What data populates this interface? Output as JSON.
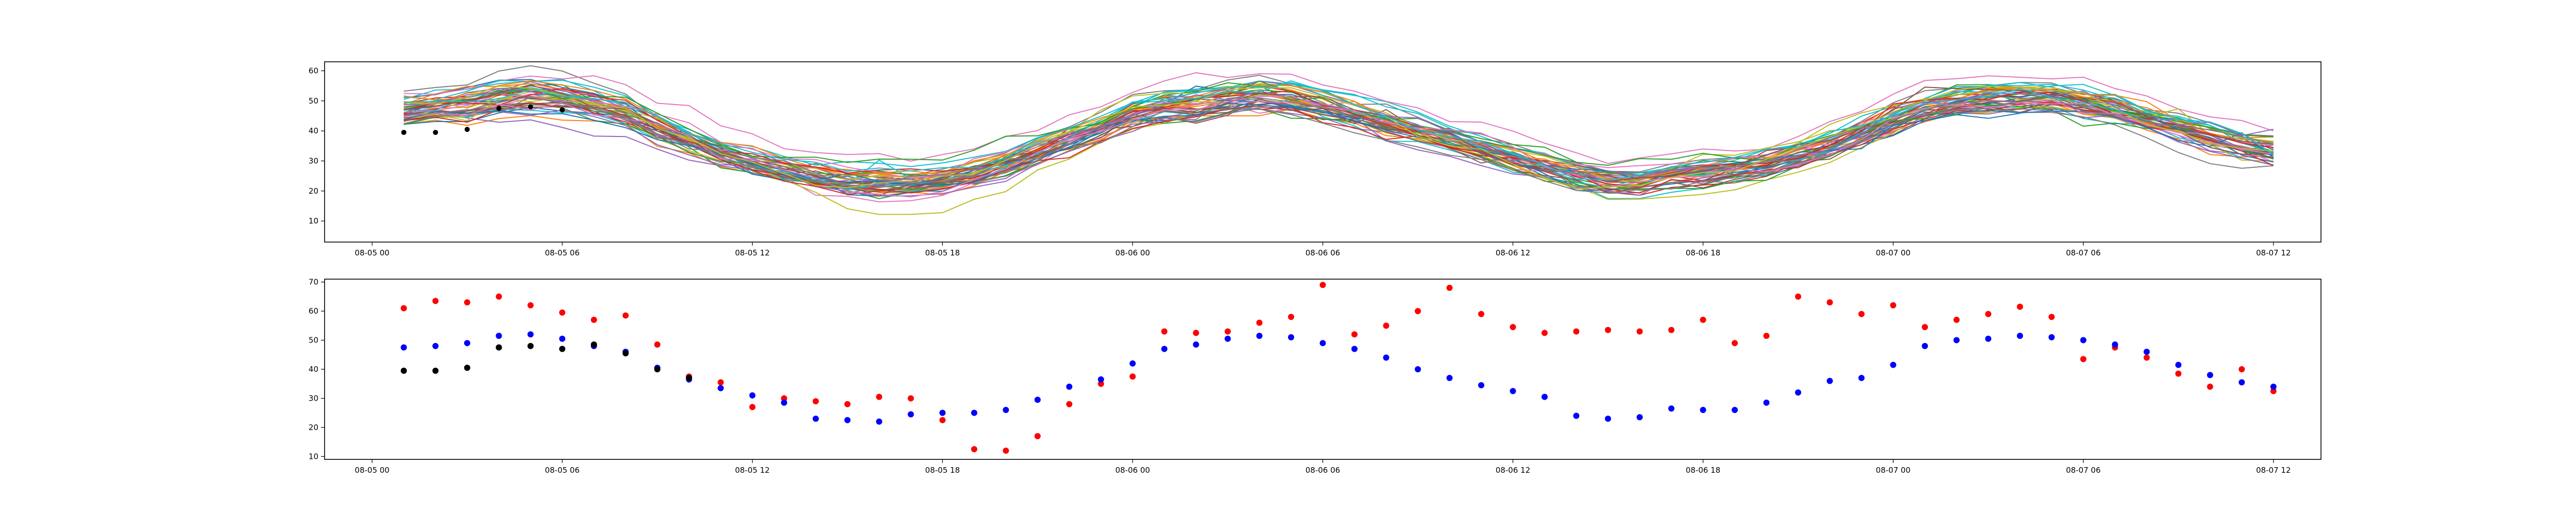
{
  "chart_data": [
    {
      "type": "line",
      "title": "",
      "xlabel": "",
      "ylabel": "",
      "xlim_hours": [
        -1.5,
        61.5
      ],
      "ylim": [
        3,
        63
      ],
      "grid": false,
      "legend": "none",
      "x_tick_labels": [
        "08-05 00",
        "08-05 06",
        "08-05 12",
        "08-05 18",
        "08-06 00",
        "08-06 06",
        "08-06 12",
        "08-06 18",
        "08-07 00",
        "08-07 06",
        "08-07 12"
      ],
      "y_ticks": [
        10,
        20,
        30,
        40,
        50,
        60
      ],
      "ensemble": {
        "member_count": 50,
        "hours": [
          1,
          2,
          3,
          4,
          5,
          6,
          7,
          8,
          9,
          10,
          11,
          12,
          13,
          14,
          15,
          16,
          17,
          18,
          19,
          20,
          21,
          22,
          23,
          24,
          25,
          26,
          27,
          28,
          29,
          30,
          31,
          32,
          33,
          34,
          35,
          36,
          37,
          38,
          39,
          40,
          41,
          42,
          43,
          44,
          45,
          46,
          47,
          48,
          49,
          50,
          51,
          52,
          53,
          54,
          55,
          56,
          57,
          58,
          59,
          60
        ],
        "mean": [
          47,
          48,
          49,
          51,
          52,
          51,
          49,
          46,
          41,
          37,
          33,
          30,
          27,
          25,
          23,
          23,
          23,
          24,
          26,
          29,
          33,
          37,
          41,
          46,
          48,
          49,
          51,
          52,
          51,
          49,
          46,
          43,
          40,
          37,
          34,
          31,
          28,
          25,
          23,
          23,
          25,
          26,
          27,
          29,
          32,
          35,
          39,
          44,
          48,
          50,
          51,
          51,
          51,
          49,
          47,
          44,
          41,
          38,
          35,
          33
        ],
        "colors": [
          "#1f77b4",
          "#ff7f0e",
          "#2ca02c",
          "#d62728",
          "#9467bd",
          "#8c564b",
          "#e377c2",
          "#7f7f7f",
          "#bcbd22",
          "#17becf"
        ]
      },
      "observed": {
        "color": "#000000",
        "points": [
          [
            1,
            39.5
          ],
          [
            2,
            39.5
          ],
          [
            3,
            40.5
          ],
          [
            4,
            47.5
          ],
          [
            5,
            48
          ],
          [
            6,
            47
          ]
        ]
      }
    },
    {
      "type": "scatter",
      "title": "",
      "xlabel": "",
      "ylabel": "",
      "xlim_hours": [
        -1.5,
        61.5
      ],
      "ylim": [
        9,
        71
      ],
      "grid": false,
      "legend": "none",
      "x_tick_labels": [
        "08-05 00",
        "08-05 06",
        "08-05 12",
        "08-05 18",
        "08-06 00",
        "08-06 06",
        "08-06 12",
        "08-06 18",
        "08-07 00",
        "08-07 06",
        "08-07 12"
      ],
      "y_ticks": [
        10,
        20,
        30,
        40,
        50,
        60,
        70
      ],
      "series": [
        {
          "color": "#ff0000",
          "points": [
            [
              1,
              61
            ],
            [
              2,
              63.5
            ],
            [
              3,
              63
            ],
            [
              4,
              65
            ],
            [
              5,
              62
            ],
            [
              6,
              59.5
            ],
            [
              7,
              57
            ],
            [
              8,
              58.5
            ],
            [
              9,
              48.5
            ],
            [
              10,
              37.5
            ],
            [
              11,
              35.5
            ],
            [
              12,
              27
            ],
            [
              13,
              30
            ],
            [
              14,
              29
            ],
            [
              15,
              28
            ],
            [
              16,
              30.5
            ],
            [
              17,
              30
            ],
            [
              18,
              22.5
            ],
            [
              19,
              12.5
            ],
            [
              20,
              12
            ],
            [
              21,
              17
            ],
            [
              22,
              28
            ],
            [
              23,
              35
            ],
            [
              24,
              37.5
            ],
            [
              25,
              53
            ],
            [
              26,
              52.5
            ],
            [
              27,
              53
            ],
            [
              28,
              56
            ],
            [
              29,
              58
            ],
            [
              30,
              69
            ],
            [
              31,
              52
            ],
            [
              32,
              55
            ],
            [
              33,
              60
            ],
            [
              34,
              68
            ],
            [
              35,
              59
            ],
            [
              36,
              54.5
            ],
            [
              37,
              52.5
            ],
            [
              38,
              53
            ],
            [
              39,
              53.5
            ],
            [
              40,
              53
            ],
            [
              41,
              53.5
            ],
            [
              42,
              57
            ],
            [
              43,
              49
            ],
            [
              44,
              51.5
            ],
            [
              45,
              65
            ],
            [
              46,
              63
            ],
            [
              47,
              59
            ],
            [
              48,
              62
            ],
            [
              49,
              54.5
            ],
            [
              50,
              57
            ],
            [
              51,
              59
            ],
            [
              52,
              61.5
            ],
            [
              53,
              58
            ],
            [
              54,
              43.5
            ],
            [
              55,
              47.5
            ],
            [
              56,
              44
            ],
            [
              57,
              38.5
            ],
            [
              58,
              34
            ],
            [
              59,
              40
            ],
            [
              60,
              32.5
            ]
          ]
        },
        {
          "color": "#0000ff",
          "points": [
            [
              1,
              47.5
            ],
            [
              2,
              48
            ],
            [
              3,
              49
            ],
            [
              4,
              51.5
            ],
            [
              5,
              52
            ],
            [
              6,
              50.5
            ],
            [
              7,
              48
            ],
            [
              8,
              46
            ],
            [
              9,
              40.5
            ],
            [
              10,
              36.5
            ],
            [
              11,
              33.5
            ],
            [
              12,
              31
            ],
            [
              13,
              28.5
            ],
            [
              14,
              23
            ],
            [
              15,
              22.5
            ],
            [
              16,
              22
            ],
            [
              17,
              24.5
            ],
            [
              18,
              25
            ],
            [
              19,
              25
            ],
            [
              20,
              26
            ],
            [
              21,
              29.5
            ],
            [
              22,
              34
            ],
            [
              23,
              36.5
            ],
            [
              24,
              42
            ],
            [
              25,
              47
            ],
            [
              26,
              48.5
            ],
            [
              27,
              50.5
            ],
            [
              28,
              51.5
            ],
            [
              29,
              51
            ],
            [
              30,
              49
            ],
            [
              31,
              47
            ],
            [
              32,
              44
            ],
            [
              33,
              40
            ],
            [
              34,
              37
            ],
            [
              35,
              34.5
            ],
            [
              36,
              32.5
            ],
            [
              37,
              30.5
            ],
            [
              38,
              24
            ],
            [
              39,
              23
            ],
            [
              40,
              23.5
            ],
            [
              41,
              26.5
            ],
            [
              42,
              26
            ],
            [
              43,
              26
            ],
            [
              44,
              28.5
            ],
            [
              45,
              32
            ],
            [
              46,
              36
            ],
            [
              47,
              37
            ],
            [
              48,
              41.5
            ],
            [
              49,
              48
            ],
            [
              50,
              50
            ],
            [
              51,
              50.5
            ],
            [
              52,
              51.5
            ],
            [
              53,
              51
            ],
            [
              54,
              50
            ],
            [
              55,
              48.5
            ],
            [
              56,
              46
            ],
            [
              57,
              41.5
            ],
            [
              58,
              38
            ],
            [
              59,
              35.5
            ],
            [
              60,
              34
            ]
          ]
        },
        {
          "color": "#000000",
          "points": [
            [
              1,
              39.5
            ],
            [
              2,
              39.5
            ],
            [
              3,
              40.5
            ],
            [
              4,
              47.5
            ],
            [
              5,
              48
            ],
            [
              6,
              47
            ],
            [
              7,
              48.5
            ],
            [
              8,
              45.5
            ],
            [
              9,
              40
            ],
            [
              10,
              37
            ]
          ]
        }
      ]
    }
  ]
}
